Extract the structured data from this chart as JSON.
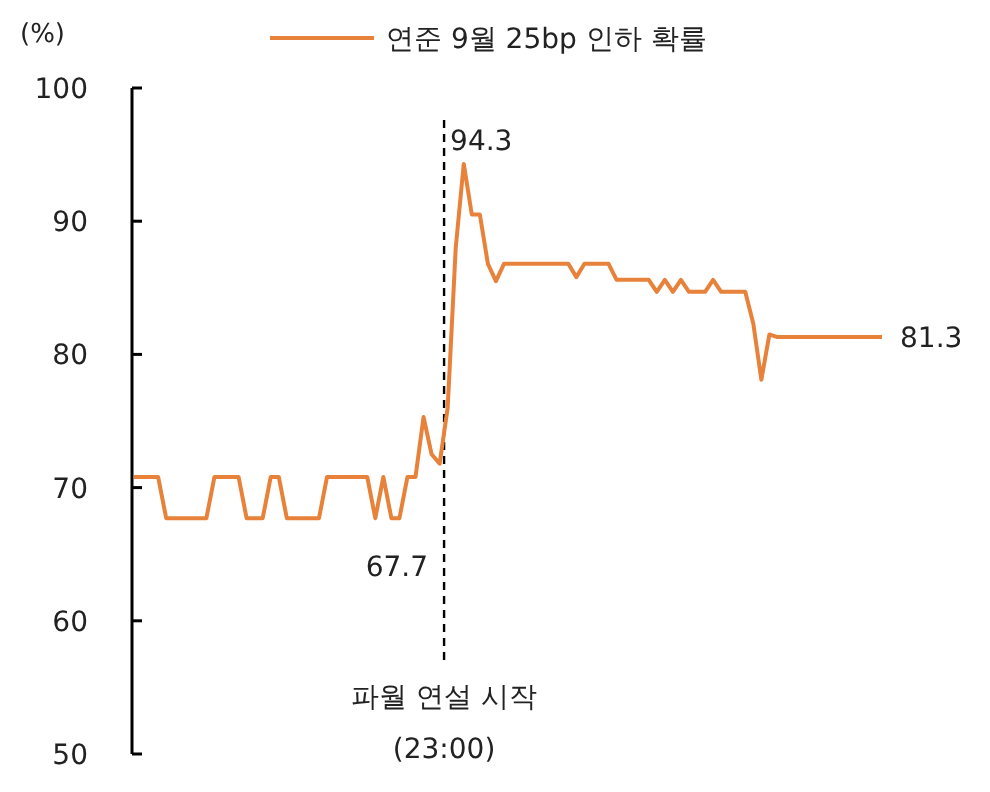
{
  "chart_data": {
    "type": "line",
    "ylabel": "(%)",
    "ylim": [
      50,
      100
    ],
    "yticks": [
      50,
      60,
      70,
      80,
      90,
      100
    ],
    "grid": false,
    "legend": "top",
    "marker": "none",
    "line_style": "solid",
    "categories": [
      null,
      null,
      null,
      null,
      null,
      null,
      null,
      null,
      null,
      null,
      null,
      null,
      null,
      null,
      null,
      null,
      null,
      null,
      null,
      null,
      null,
      null,
      null,
      null,
      null,
      null,
      null,
      null,
      null,
      null,
      null,
      null,
      null,
      null,
      null,
      null,
      null,
      null,
      null,
      null,
      null,
      null,
      null,
      null,
      null,
      null,
      null,
      null,
      null,
      null,
      null,
      null,
      null,
      null,
      null,
      null,
      null,
      null,
      null,
      null,
      null,
      null,
      null,
      null,
      null,
      null,
      null,
      null,
      null,
      null,
      null,
      null,
      null,
      null,
      null,
      null,
      null,
      null,
      null,
      null,
      null,
      null,
      null,
      null,
      null,
      null,
      null,
      null,
      null,
      null,
      null,
      null,
      null,
      null
    ],
    "series": [
      {
        "name": "연준 9월 25bp 인하 확률",
        "color": "#e8823a",
        "values": [
          70.8,
          70.8,
          70.8,
          70.8,
          67.7,
          67.7,
          67.7,
          67.7,
          67.7,
          67.7,
          70.8,
          70.8,
          70.8,
          70.8,
          67.7,
          67.7,
          67.7,
          70.8,
          70.8,
          67.7,
          67.7,
          67.7,
          67.7,
          67.7,
          70.8,
          70.8,
          70.8,
          70.8,
          70.8,
          70.8,
          67.7,
          70.8,
          67.7,
          67.7,
          70.8,
          70.8,
          75.3,
          72.5,
          71.8,
          76,
          88,
          94.3,
          90.5,
          90.5,
          86.8,
          85.5,
          86.8,
          86.8,
          86.8,
          86.8,
          86.8,
          86.8,
          86.8,
          86.8,
          86.8,
          85.8,
          86.8,
          86.8,
          86.8,
          86.8,
          85.6,
          85.6,
          85.6,
          85.6,
          85.6,
          84.7,
          85.6,
          84.7,
          85.6,
          84.7,
          84.7,
          84.7,
          85.6,
          84.7,
          84.7,
          84.7,
          84.7,
          82.3,
          78.1,
          81.5,
          81.3,
          81.3,
          81.3,
          81.3,
          81.3,
          81.3,
          81.3,
          81.3,
          81.3,
          81.3,
          81.3,
          81.3,
          81.3,
          81.3
        ]
      }
    ],
    "annotations": [
      "94.3",
      "67.7",
      "81.3",
      "파월 연설 시작\n(23:00)"
    ]
  }
}
